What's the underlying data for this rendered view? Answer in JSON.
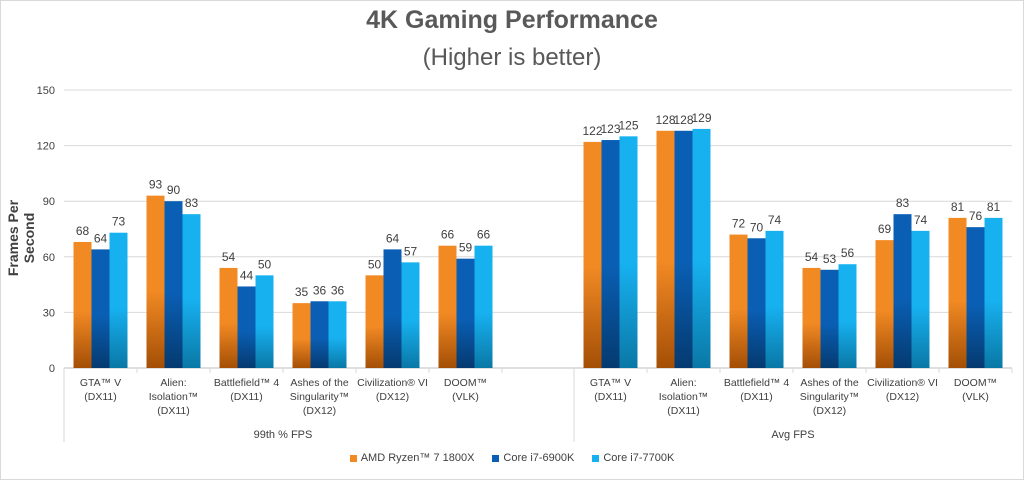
{
  "chart_data": {
    "type": "bar",
    "title": "4K Gaming Performance",
    "subtitle": "(Higher is better)",
    "ylabel": "Frames Per Second",
    "ylim": [
      0,
      150
    ],
    "yticks": [
      0,
      30,
      60,
      90,
      120,
      150
    ],
    "groups": [
      {
        "name": "99th % FPS",
        "categories": [
          "GTA™ V\n(DX11)",
          "Alien:\nIsolation™\n(DX11)",
          "Battlefield™ 4\n(DX11)",
          "Ashes of the\nSingularity™\n(DX12)",
          "Civilization® VI\n(DX12)",
          "DOOM™\n(VLK)"
        ],
        "series": [
          {
            "name": "AMD Ryzen™ 7 1800X",
            "values": [
              68,
              93,
              54,
              35,
              50,
              66
            ]
          },
          {
            "name": "Core i7-6900K",
            "values": [
              64,
              90,
              44,
              36,
              64,
              59
            ]
          },
          {
            "name": "Core i7-7700K",
            "values": [
              73,
              83,
              50,
              36,
              57,
              66
            ]
          }
        ]
      },
      {
        "name": "Avg FPS",
        "categories": [
          "GTA™ V\n(DX11)",
          "Alien:\nIsolation™\n(DX11)",
          "Battlefield™ 4\n(DX11)",
          "Ashes of the\nSingularity™\n(DX12)",
          "Civilization® VI\n(DX12)",
          "DOOM™\n(VLK)"
        ],
        "series": [
          {
            "name": "AMD Ryzen™ 7 1800X",
            "values": [
              122,
              128,
              72,
              54,
              69,
              81
            ]
          },
          {
            "name": "Core i7-6900K",
            "values": [
              123,
              128,
              70,
              53,
              83,
              76
            ]
          },
          {
            "name": "Core i7-7700K",
            "values": [
              125,
              129,
              74,
              56,
              74,
              81
            ]
          }
        ]
      }
    ],
    "legend": {
      "position": "bottom",
      "entries": [
        "AMD Ryzen™ 7 1800X",
        "Core i7-6900K",
        "Core i7-7700K"
      ]
    },
    "colors": {
      "series": [
        "#f28a24",
        "#0a5fb4",
        "#17b1f0"
      ],
      "series_dark": [
        "#a44f06",
        "#053a70",
        "#0a78a6"
      ],
      "grid": "#d9d9d9",
      "text": "#404040"
    },
    "grid": true
  }
}
